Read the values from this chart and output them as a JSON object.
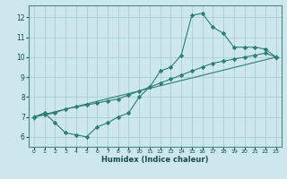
{
  "title": "",
  "xlabel": "Humidex (Indice chaleur)",
  "bg_color": "#cce8ec",
  "grid_color": "#aacdd4",
  "line_color": "#2e7d72",
  "xlim": [
    -0.5,
    23.5
  ],
  "ylim": [
    5.5,
    12.6
  ],
  "xticks": [
    0,
    1,
    2,
    3,
    4,
    5,
    6,
    7,
    8,
    9,
    10,
    11,
    12,
    13,
    14,
    15,
    16,
    17,
    18,
    19,
    20,
    21,
    22,
    23
  ],
  "yticks": [
    6,
    7,
    8,
    9,
    10,
    11,
    12
  ],
  "lines": [
    {
      "x": [
        0,
        1,
        2,
        3,
        4,
        5,
        6,
        7,
        8,
        9,
        10,
        11,
        12,
        13,
        14,
        15,
        16,
        17,
        18,
        19,
        20,
        21,
        22,
        23
      ],
      "y": [
        7.0,
        7.2,
        6.7,
        6.2,
        6.1,
        6.0,
        6.5,
        6.7,
        7.0,
        7.2,
        8.0,
        8.5,
        9.3,
        9.5,
        10.1,
        12.1,
        12.2,
        11.5,
        11.2,
        10.5,
        10.5,
        10.5,
        10.4,
        10.0
      ]
    },
    {
      "x": [
        0,
        23
      ],
      "y": [
        7.0,
        10.0
      ]
    },
    {
      "x": [
        0,
        1,
        2,
        3,
        4,
        5,
        6,
        7,
        8,
        9,
        10,
        11,
        12,
        13,
        14,
        15,
        16,
        17,
        18,
        19,
        20,
        21,
        22,
        23
      ],
      "y": [
        7.0,
        7.1,
        7.2,
        7.4,
        7.5,
        7.6,
        7.7,
        7.8,
        7.9,
        8.1,
        8.3,
        8.5,
        8.7,
        8.9,
        9.1,
        9.3,
        9.5,
        9.7,
        9.8,
        9.9,
        10.0,
        10.1,
        10.2,
        10.0
      ]
    }
  ]
}
